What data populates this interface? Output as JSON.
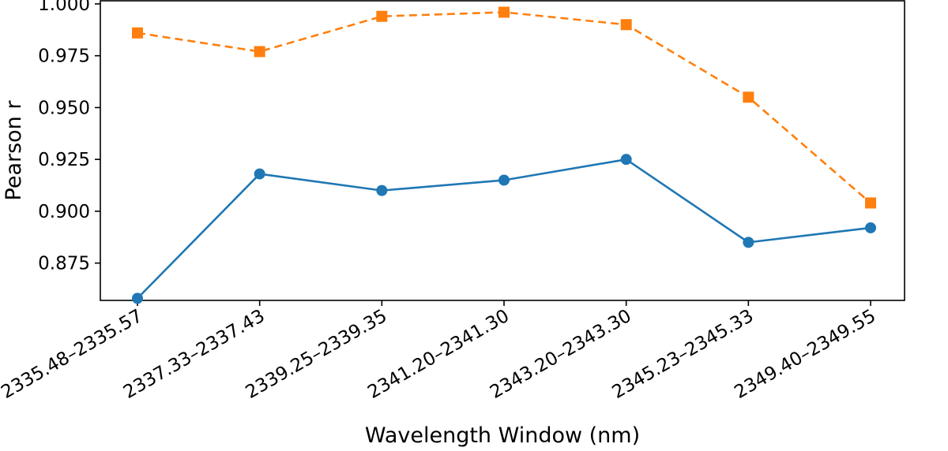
{
  "chart_data": {
    "type": "line",
    "title": "",
    "xlabel": "Wavelength Window (nm)",
    "ylabel": "Pearson r",
    "categories": [
      "2335.48–2335.57",
      "2337.33–2337.43",
      "2339.25–2339.35",
      "2341.20–2341.30",
      "2343.20–2343.30",
      "2345.23–2345.33",
      "2349.40–2349.55"
    ],
    "yticks": [
      "0.875",
      "0.900",
      "0.925",
      "0.950",
      "0.975",
      "1.000"
    ],
    "ylim": [
      0.857,
      1.0015
    ],
    "grid": false,
    "legend": "none",
    "series": [
      {
        "values": [
          0.858,
          0.918,
          0.91,
          0.915,
          0.925,
          0.885,
          0.892
        ],
        "color": "#1f77b4",
        "line_style": "solid",
        "marker": "circle"
      },
      {
        "values": [
          0.986,
          0.977,
          0.994,
          0.996,
          0.99,
          0.955,
          0.904
        ],
        "color": "#ff7f0e",
        "line_style": "dashed",
        "marker": "square"
      }
    ]
  }
}
